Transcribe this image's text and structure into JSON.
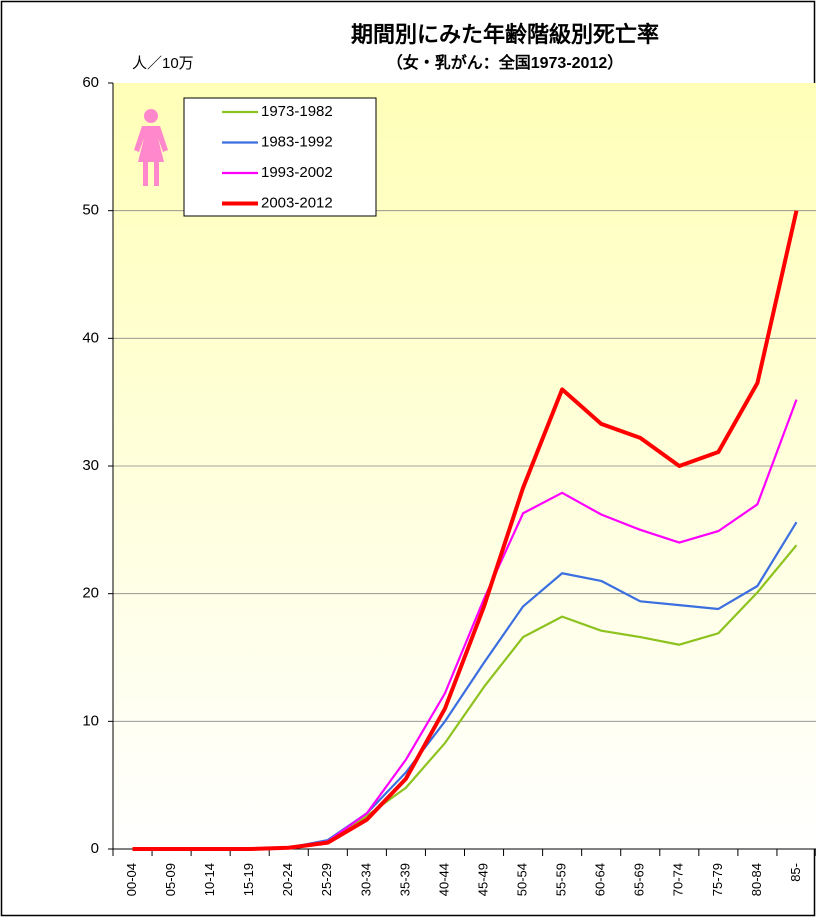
{
  "chart_data": {
    "type": "line",
    "title": "期間別にみた年齢階級別死亡率",
    "subtitle": "（女・乳がん：全国1973-2012）",
    "y_axis_label": "人／10万",
    "categories": [
      "00-04",
      "05-09",
      "10-14",
      "15-19",
      "20-24",
      "25-29",
      "30-34",
      "35-39",
      "40-44",
      "45-49",
      "50-54",
      "55-59",
      "60-64",
      "65-69",
      "70-74",
      "75-79",
      "80-84",
      "85-"
    ],
    "series": [
      {
        "name": "1973-1982",
        "color": "#8dc21f",
        "values": [
          0,
          0,
          0,
          0,
          0.1,
          0.6,
          2.6,
          4.8,
          8.3,
          12.7,
          16.6,
          18.2,
          17.1,
          16.6,
          16.0,
          16.9,
          20.1,
          23.8
        ]
      },
      {
        "name": "1983-1992",
        "color": "#3b6fe0",
        "values": [
          0,
          0,
          0,
          0,
          0.1,
          0.7,
          2.8,
          6.0,
          10.0,
          14.6,
          19.0,
          21.6,
          21.0,
          19.4,
          19.1,
          18.8,
          20.6,
          25.6
        ]
      },
      {
        "name": "1993-2002",
        "color": "#ff00ff",
        "values": [
          0,
          0,
          0,
          0,
          0.1,
          0.6,
          2.8,
          7.0,
          12.2,
          19.6,
          26.3,
          27.9,
          26.2,
          25.0,
          24.0,
          24.9,
          27.0,
          35.2
        ]
      },
      {
        "name": "2003-2012",
        "color": "#ff0000",
        "values": [
          0,
          0,
          0,
          0,
          0.1,
          0.5,
          2.3,
          5.5,
          11.0,
          19.0,
          28.3,
          36.0,
          33.3,
          32.2,
          30.0,
          31.1,
          36.5,
          50.0
        ]
      }
    ],
    "ylim": [
      0,
      60
    ],
    "yticks": [
      0,
      10,
      20,
      30,
      40,
      50,
      60
    ],
    "grid": true,
    "legend": "upper left"
  }
}
